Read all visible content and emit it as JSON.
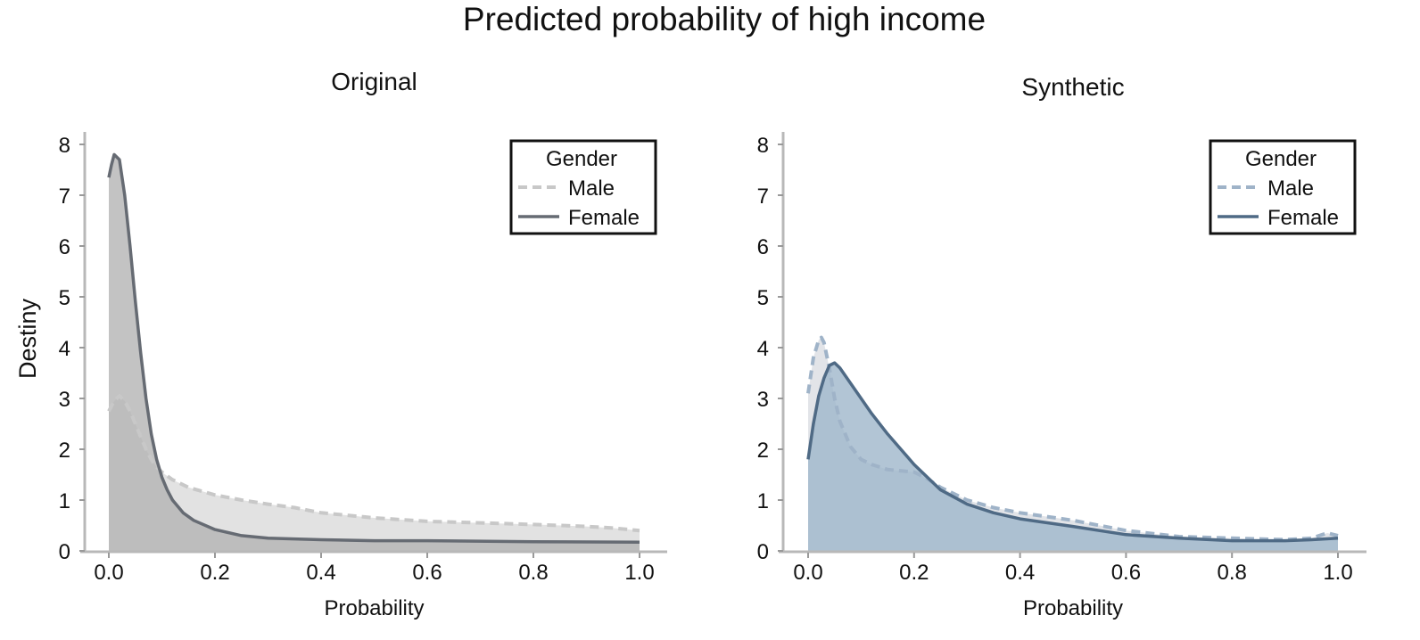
{
  "chart_data": {
    "title": "Predicted probability of high income",
    "ylabel": "Destiny",
    "panels": [
      {
        "type": "area",
        "title": "Original",
        "xlabel": "Probability",
        "ylabel": "Destiny",
        "xlim": [
          0,
          1.0
        ],
        "ylim": [
          0,
          8.2
        ],
        "xticks": [
          "0.0",
          "0.2",
          "0.4",
          "0.6",
          "0.8",
          "1.0"
        ],
        "yticks": [
          "0",
          "1",
          "2",
          "3",
          "4",
          "5",
          "6",
          "7",
          "8"
        ],
        "legend": {
          "title": "Gender",
          "position": "top-right",
          "entries": [
            "Male",
            "Female"
          ]
        },
        "series": [
          {
            "name": "Male",
            "line_style": "dashed",
            "line_color": "#c8c8c8",
            "fill_color": "#d8d8d8",
            "x": [
              0,
              0.01,
              0.02,
              0.03,
              0.04,
              0.05,
              0.06,
              0.07,
              0.08,
              0.09,
              0.1,
              0.12,
              0.15,
              0.2,
              0.25,
              0.3,
              0.35,
              0.4,
              0.5,
              0.6,
              0.7,
              0.8,
              0.9,
              0.95,
              1.0
            ],
            "y": [
              2.75,
              2.95,
              3.05,
              2.95,
              2.75,
              2.5,
              2.25,
              2.0,
              1.8,
              1.65,
              1.55,
              1.4,
              1.25,
              1.1,
              1.0,
              0.92,
              0.85,
              0.75,
              0.65,
              0.58,
              0.55,
              0.52,
              0.48,
              0.45,
              0.4
            ]
          },
          {
            "name": "Female",
            "line_style": "solid",
            "line_color": "#666b73",
            "fill_color": "#b4b4b4",
            "x": [
              0,
              0.005,
              0.01,
              0.02,
              0.03,
              0.04,
              0.05,
              0.06,
              0.07,
              0.08,
              0.09,
              0.1,
              0.11,
              0.12,
              0.14,
              0.16,
              0.2,
              0.25,
              0.3,
              0.4,
              0.5,
              0.6,
              0.8,
              1.0
            ],
            "y": [
              7.35,
              7.6,
              7.8,
              7.7,
              7.0,
              6.0,
              4.9,
              3.9,
              3.0,
              2.3,
              1.8,
              1.45,
              1.2,
              1.0,
              0.75,
              0.6,
              0.42,
              0.3,
              0.25,
              0.22,
              0.2,
              0.2,
              0.18,
              0.17
            ]
          }
        ]
      },
      {
        "type": "area",
        "title": "Synthetic",
        "xlabel": "Probability",
        "ylabel": "",
        "xlim": [
          0,
          1.0
        ],
        "ylim": [
          0,
          8.2
        ],
        "xticks": [
          "0.0",
          "0.2",
          "0.4",
          "0.6",
          "0.8",
          "1.0"
        ],
        "yticks": [
          "0",
          "1",
          "2",
          "3",
          "4",
          "5",
          "6",
          "7",
          "8"
        ],
        "legend": {
          "title": "Gender",
          "position": "top-right",
          "entries": [
            "Male",
            "Female"
          ]
        },
        "series": [
          {
            "name": "Male",
            "line_style": "dashed",
            "line_color": "#9fb3c8",
            "fill_color": "#d8dbe0",
            "x": [
              0,
              0.01,
              0.02,
              0.025,
              0.03,
              0.04,
              0.05,
              0.06,
              0.08,
              0.1,
              0.12,
              0.15,
              0.2,
              0.22,
              0.25,
              0.3,
              0.35,
              0.4,
              0.5,
              0.6,
              0.7,
              0.8,
              0.9,
              0.95,
              0.98,
              1.0
            ],
            "y": [
              3.1,
              3.8,
              4.15,
              4.2,
              4.1,
              3.6,
              3.0,
              2.55,
              2.05,
              1.8,
              1.7,
              1.6,
              1.55,
              1.45,
              1.25,
              1.0,
              0.85,
              0.75,
              0.6,
              0.4,
              0.28,
              0.25,
              0.22,
              0.25,
              0.35,
              0.3
            ]
          },
          {
            "name": "Female",
            "line_style": "solid",
            "line_color": "#4f6a85",
            "fill_color": "#9fb7cb",
            "x": [
              0,
              0.01,
              0.02,
              0.03,
              0.04,
              0.05,
              0.06,
              0.08,
              0.1,
              0.12,
              0.15,
              0.2,
              0.25,
              0.3,
              0.35,
              0.4,
              0.5,
              0.6,
              0.7,
              0.8,
              0.9,
              0.95,
              1.0
            ],
            "y": [
              1.8,
              2.5,
              3.05,
              3.4,
              3.65,
              3.7,
              3.6,
              3.3,
              3.0,
              2.7,
              2.3,
              1.7,
              1.2,
              0.92,
              0.75,
              0.63,
              0.48,
              0.32,
              0.25,
              0.2,
              0.2,
              0.22,
              0.25
            ]
          }
        ]
      }
    ]
  }
}
